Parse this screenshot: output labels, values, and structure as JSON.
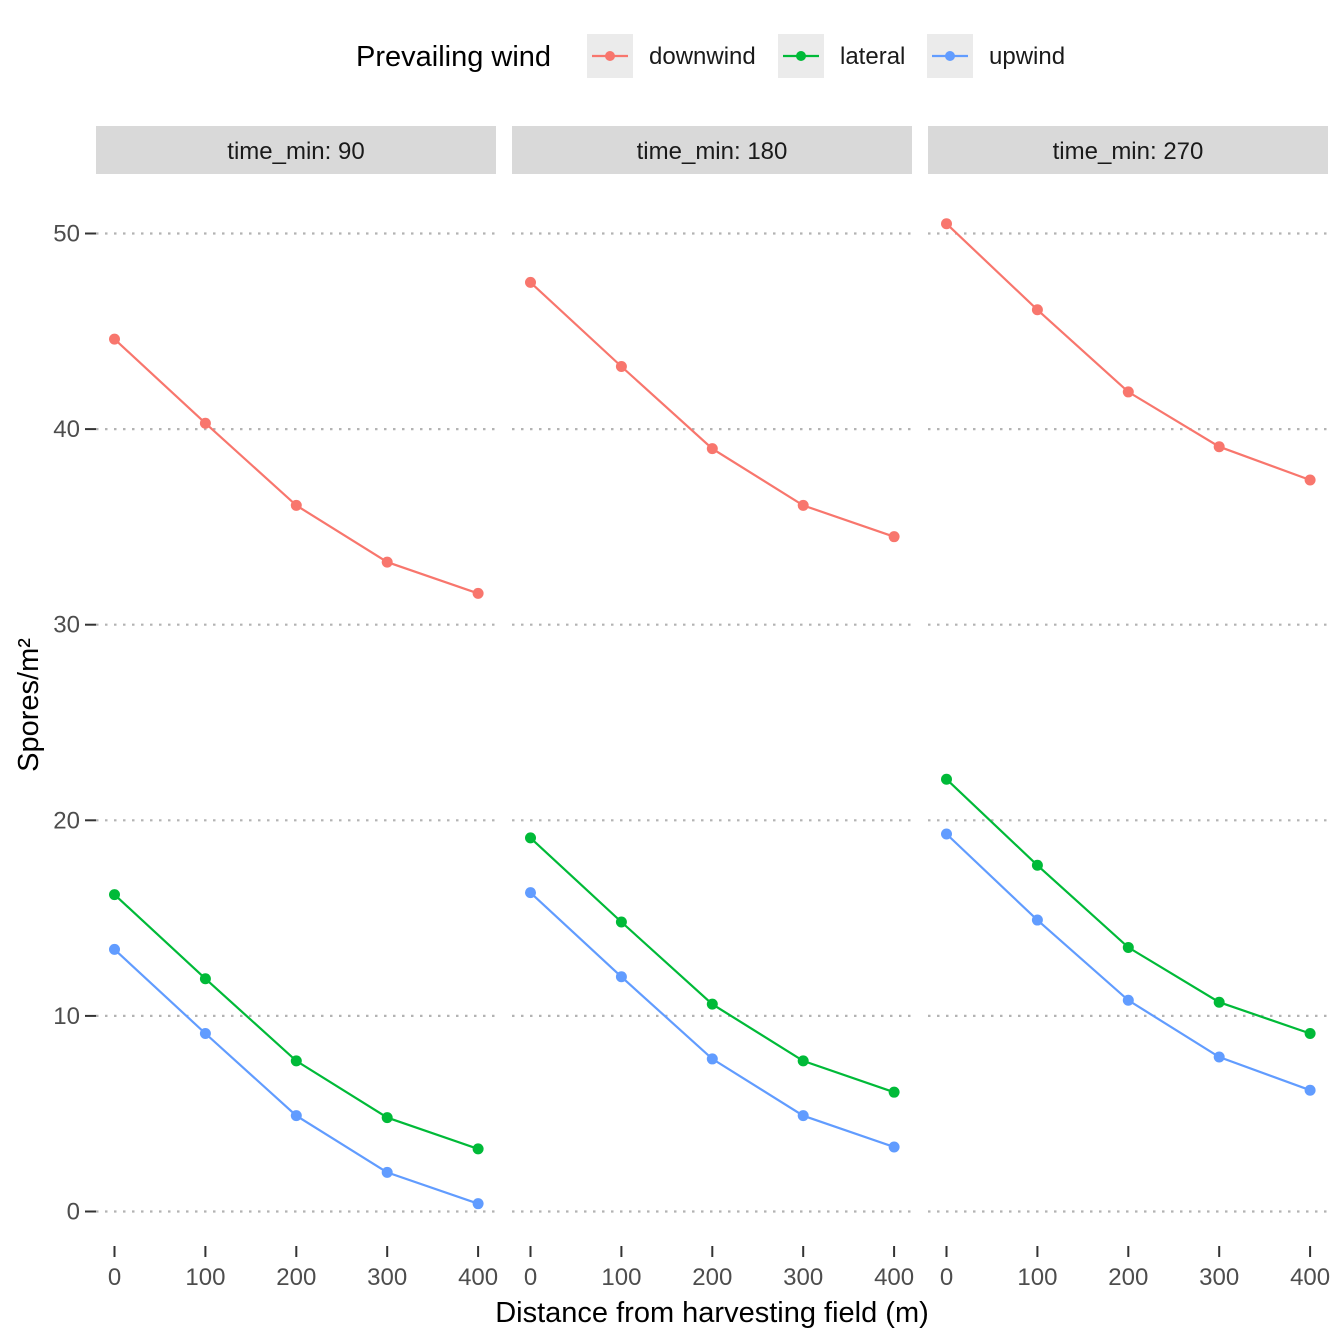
{
  "chart_data": {
    "type": "line",
    "facet_var": "time_min",
    "xlabel": "Distance from harvesting field (m)",
    "ylabel": "Spores/m²",
    "legend": {
      "title": "Prevailing wind",
      "position": "top",
      "entries": [
        "downwind",
        "lateral",
        "upwind"
      ]
    },
    "x": [
      0,
      100,
      200,
      300,
      400
    ],
    "x_ticks": [
      "0",
      "100",
      "200",
      "300",
      "400"
    ],
    "y_ticks": [
      "0",
      "10",
      "20",
      "30",
      "40",
      "50"
    ],
    "ylim": [
      -1.5,
      51.5
    ],
    "xlim": [
      -20,
      420
    ],
    "grid": "horizontal dotted major lines",
    "colors": {
      "downwind": "#F8766D",
      "lateral": "#00BA38",
      "upwind": "#619CFF"
    },
    "panels": [
      {
        "label": "time_min: 90",
        "series": [
          {
            "name": "downwind",
            "values": [
              44.6,
              40.3,
              36.1,
              33.2,
              31.6
            ]
          },
          {
            "name": "lateral",
            "values": [
              16.2,
              11.9,
              7.7,
              4.8,
              3.2
            ]
          },
          {
            "name": "upwind",
            "values": [
              13.4,
              9.1,
              4.9,
              2.0,
              0.4
            ]
          }
        ]
      },
      {
        "label": "time_min: 180",
        "series": [
          {
            "name": "downwind",
            "values": [
              47.5,
              43.2,
              39.0,
              36.1,
              34.5
            ]
          },
          {
            "name": "lateral",
            "values": [
              19.1,
              14.8,
              10.6,
              7.7,
              6.1
            ]
          },
          {
            "name": "upwind",
            "values": [
              16.3,
              12.0,
              7.8,
              4.9,
              3.3
            ]
          }
        ]
      },
      {
        "label": "time_min: 270",
        "series": [
          {
            "name": "downwind",
            "values": [
              50.5,
              46.1,
              41.9,
              39.1,
              37.4
            ]
          },
          {
            "name": "lateral",
            "values": [
              22.1,
              17.7,
              13.5,
              10.7,
              9.1
            ]
          },
          {
            "name": "upwind",
            "values": [
              19.3,
              14.9,
              10.8,
              7.9,
              6.2
            ]
          }
        ]
      }
    ]
  }
}
